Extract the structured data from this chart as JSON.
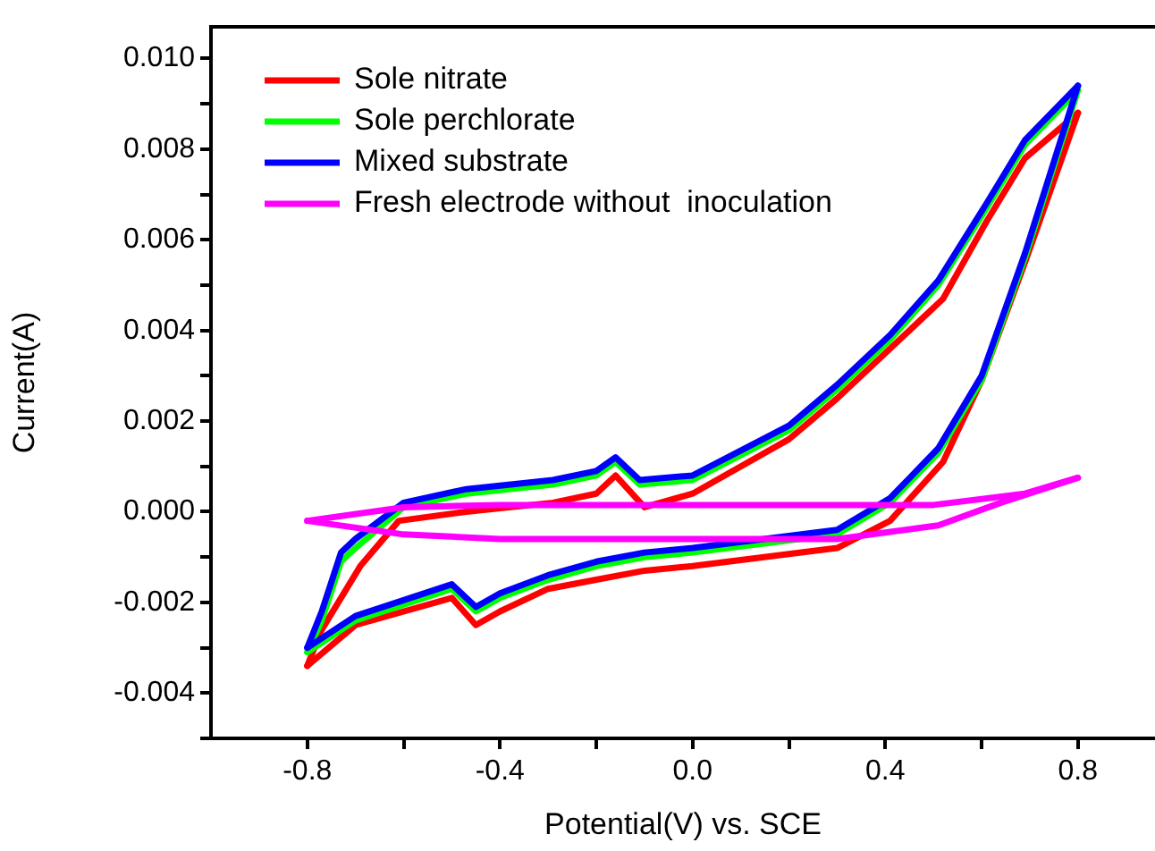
{
  "chart_data": {
    "type": "line",
    "xlabel": "Potential(V) vs. SCE",
    "ylabel": "Current(A)",
    "xlim": [
      -1.0,
      0.96
    ],
    "ylim": [
      -0.005,
      0.0107
    ],
    "xticks": [
      -0.8,
      {
        "value": -0.6,
        "label": null
      },
      -0.4,
      {
        "value": -0.2,
        "label": null
      },
      {
        "value": 0,
        "label": "0.0"
      },
      {
        "value": 0.2,
        "label": null
      },
      0.4,
      {
        "value": 0.6,
        "label": null
      },
      0.8
    ],
    "yticks": [
      {
        "value": -0.005,
        "label": null
      },
      -0.004,
      {
        "value": -0.003,
        "label": null
      },
      -0.002,
      {
        "value": -0.001,
        "label": null
      },
      {
        "value": 0,
        "label": "0.000"
      },
      {
        "value": 0.001,
        "label": null
      },
      0.002,
      {
        "value": 0.003,
        "label": null
      },
      0.004,
      {
        "value": 0.005,
        "label": null
      },
      0.006,
      {
        "value": 0.007,
        "label": null
      },
      0.008,
      {
        "value": 0.009,
        "label": null
      },
      {
        "value": 0.01,
        "label": "0.010"
      }
    ],
    "grid": false,
    "legend": "top left",
    "marker": "none",
    "line_style": "solid",
    "series": [
      {
        "name": "Sole nitrate",
        "color": "#ff0000",
        "x": [
          -0.8,
          -0.77,
          -0.69,
          -0.61,
          -0.47,
          -0.29,
          -0.2,
          -0.16,
          -0.1,
          0.0,
          0.2,
          0.3,
          0.41,
          0.52,
          0.61,
          0.69,
          0.8
        ],
        "values": [
          -0.0034,
          -0.0026,
          -0.0012,
          -0.0002,
          0.0,
          0.0002,
          0.0004,
          0.0008,
          0.0001,
          0.0004,
          0.0016,
          0.0025,
          0.0036,
          0.0047,
          0.0064,
          0.0078,
          0.0088
        ]
      },
      {
        "color": "#ff0000",
        "x": [
          0.8,
          0.69,
          0.6,
          0.52,
          0.41,
          0.3,
          0.0,
          -0.1,
          -0.2,
          -0.3,
          -0.4,
          -0.45,
          -0.5,
          -0.7,
          -0.8
        ],
        "values": [
          0.0088,
          0.0055,
          0.0029,
          0.0011,
          -0.0002,
          -0.0008,
          -0.0012,
          -0.0013,
          -0.0015,
          -0.0017,
          -0.0022,
          -0.0025,
          -0.0019,
          -0.0025,
          -0.0034
        ]
      },
      {
        "name": "Sole perchlorate",
        "color": "#00ff00",
        "x": [
          -0.8,
          -0.77,
          -0.73,
          -0.7,
          -0.6,
          -0.47,
          -0.29,
          -0.2,
          -0.16,
          -0.11,
          0.0,
          0.2,
          0.3,
          0.41,
          0.51,
          0.61,
          0.69,
          0.8
        ],
        "values": [
          -0.0031,
          -0.0024,
          -0.0011,
          -0.0008,
          0.0001,
          0.0004,
          0.0006,
          0.0008,
          0.0011,
          0.0006,
          0.0007,
          0.0018,
          0.0027,
          0.0038,
          0.005,
          0.0067,
          0.0081,
          0.0093
        ]
      },
      {
        "color": "#00ff00",
        "x": [
          0.8,
          0.69,
          0.6,
          0.51,
          0.41,
          0.3,
          0.0,
          -0.1,
          -0.2,
          -0.3,
          -0.4,
          -0.45,
          -0.5,
          -0.7,
          -0.8
        ],
        "values": [
          0.0093,
          0.0056,
          0.0029,
          0.0013,
          0.0002,
          -0.0005,
          -0.0009,
          -0.001,
          -0.0012,
          -0.0015,
          -0.0019,
          -0.0022,
          -0.0017,
          -0.0024,
          -0.0031
        ]
      },
      {
        "name": "Mixed substrate",
        "color": "#0000ff",
        "x": [
          -0.8,
          -0.77,
          -0.73,
          -0.7,
          -0.6,
          -0.47,
          -0.29,
          -0.2,
          -0.16,
          -0.11,
          0.0,
          0.2,
          0.3,
          0.41,
          0.51,
          0.61,
          0.69,
          0.8
        ],
        "values": [
          -0.003,
          -0.0022,
          -0.0009,
          -0.0006,
          0.0002,
          0.0005,
          0.0007,
          0.0009,
          0.0012,
          0.0007,
          0.0008,
          0.0019,
          0.0028,
          0.0039,
          0.0051,
          0.0068,
          0.0082,
          0.0094
        ]
      },
      {
        "color": "#0000ff",
        "x": [
          0.8,
          0.69,
          0.6,
          0.51,
          0.41,
          0.3,
          0.0,
          -0.1,
          -0.2,
          -0.3,
          -0.4,
          -0.45,
          -0.5,
          -0.7,
          -0.8
        ],
        "values": [
          0.0094,
          0.0057,
          0.003,
          0.0014,
          0.0003,
          -0.0004,
          -0.0008,
          -0.0009,
          -0.0011,
          -0.0014,
          -0.0018,
          -0.0021,
          -0.0016,
          -0.0023,
          -0.003
        ]
      },
      {
        "name": "Fresh electrode without  inoculation",
        "color": "#ff00ff",
        "x": [
          -0.8,
          -0.6,
          -0.4,
          0.5,
          0.69,
          0.8
        ],
        "values": [
          -0.0002,
          0.0001,
          0.00015,
          0.00015,
          0.0004,
          0.00075
        ]
      },
      {
        "color": "#ff00ff",
        "x": [
          0.8,
          0.64,
          0.51,
          0.3,
          -0.4,
          -0.6,
          -0.8
        ],
        "values": [
          0.00075,
          0.0002,
          -0.0003,
          -0.0006,
          -0.0006,
          -0.0005,
          -0.0002
        ]
      }
    ]
  }
}
